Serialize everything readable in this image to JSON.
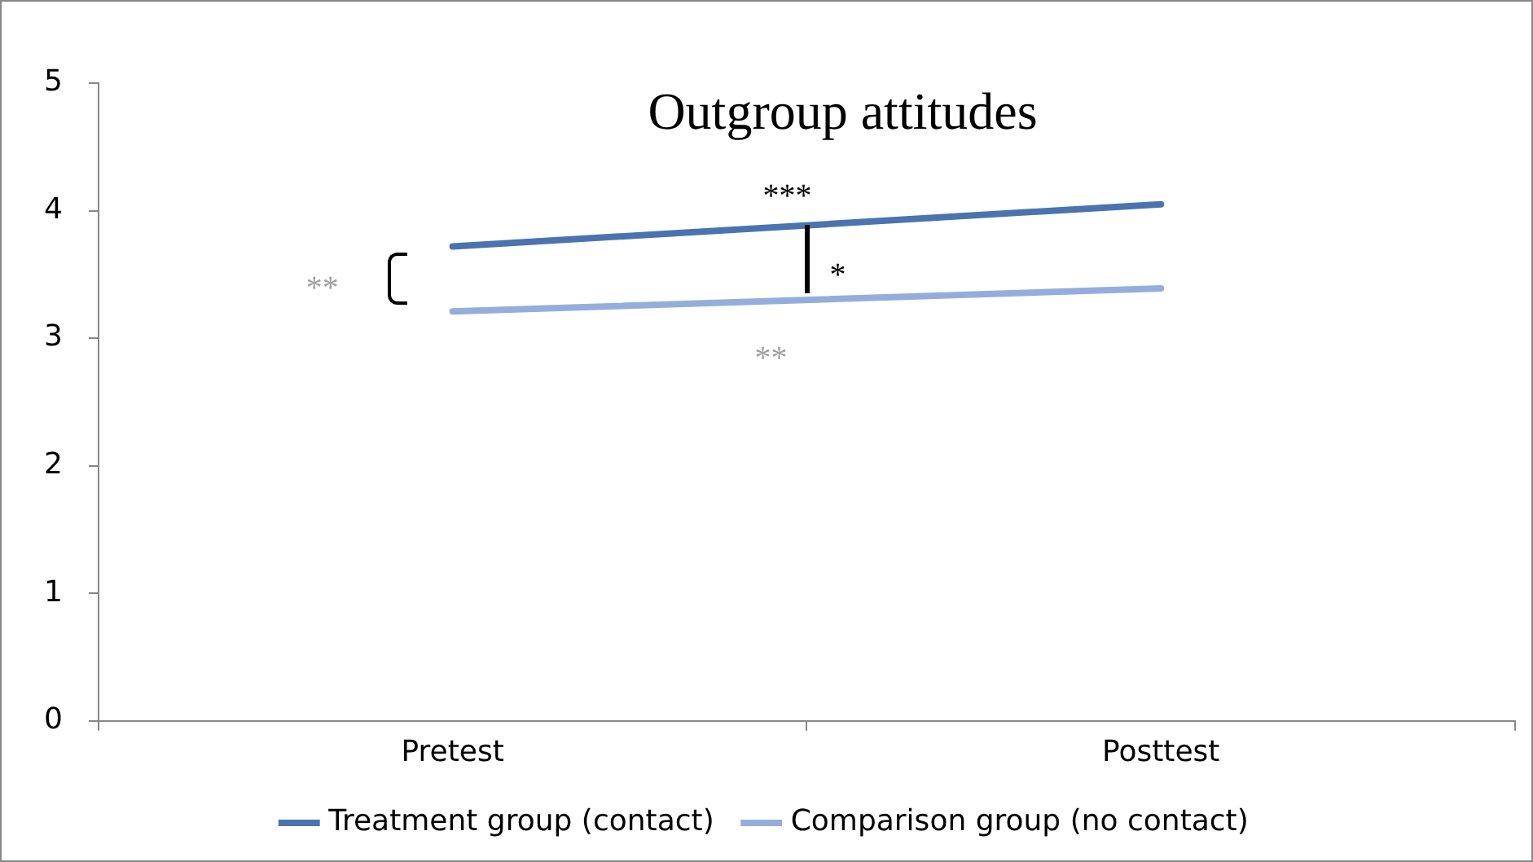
{
  "chart_data": {
    "type": "line",
    "title": "Outgroup attitudes",
    "categories": [
      "Pretest",
      "Posttest"
    ],
    "series": [
      {
        "name": "Treatment group (contact)",
        "color": "#4a73b0",
        "values": [
          3.72,
          4.05
        ]
      },
      {
        "name": "Comparison group (no contact)",
        "color": "#94aedb",
        "values": [
          3.21,
          3.39
        ]
      }
    ],
    "ylim": [
      0,
      5
    ],
    "yticks": [
      0,
      1,
      2,
      3,
      4,
      5
    ],
    "grid": false,
    "legend": "bottom",
    "marker": "none",
    "line_style": "solid",
    "annotations": [
      "***",
      "*",
      "**",
      "**"
    ]
  }
}
